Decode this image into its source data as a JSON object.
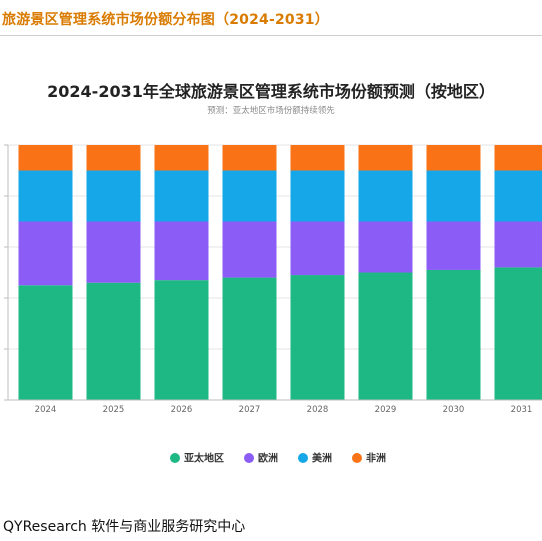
{
  "header": {
    "title": "旅游景区管理系统市场份额分布图（2024-2031）"
  },
  "footer": {
    "text": "QYResearch 软件与商业服务研究中心"
  },
  "colors": {
    "header_title": "#d97b00",
    "亚太地区": "#1db884",
    "欧洲": "#8b5cf6",
    "美洲": "#16a7e9",
    "非洲": "#f97316"
  },
  "chart_data": {
    "type": "bar",
    "stacked": true,
    "title": "2024-2031年全球旅游景区管理系统市场份额预测（按地区）",
    "subtitle": "预测：亚太地区市场份额持续领先",
    "categories": [
      "2024",
      "2025",
      "2026",
      "2027",
      "2028",
      "2029",
      "2030",
      "2031"
    ],
    "ylim": [
      0,
      100
    ],
    "grid": true,
    "legend_position": "bottom",
    "series": [
      {
        "name": "亚太地区",
        "values": [
          45,
          46,
          47,
          48,
          49,
          50,
          51,
          52
        ]
      },
      {
        "name": "欧洲",
        "values": [
          25,
          24,
          23,
          22,
          21,
          20,
          19,
          18
        ]
      },
      {
        "name": "美洲",
        "values": [
          20,
          20,
          20,
          20,
          20,
          20,
          20,
          20
        ]
      },
      {
        "name": "非洲",
        "values": [
          10,
          10,
          10,
          10,
          10,
          10,
          10,
          10
        ]
      }
    ]
  }
}
